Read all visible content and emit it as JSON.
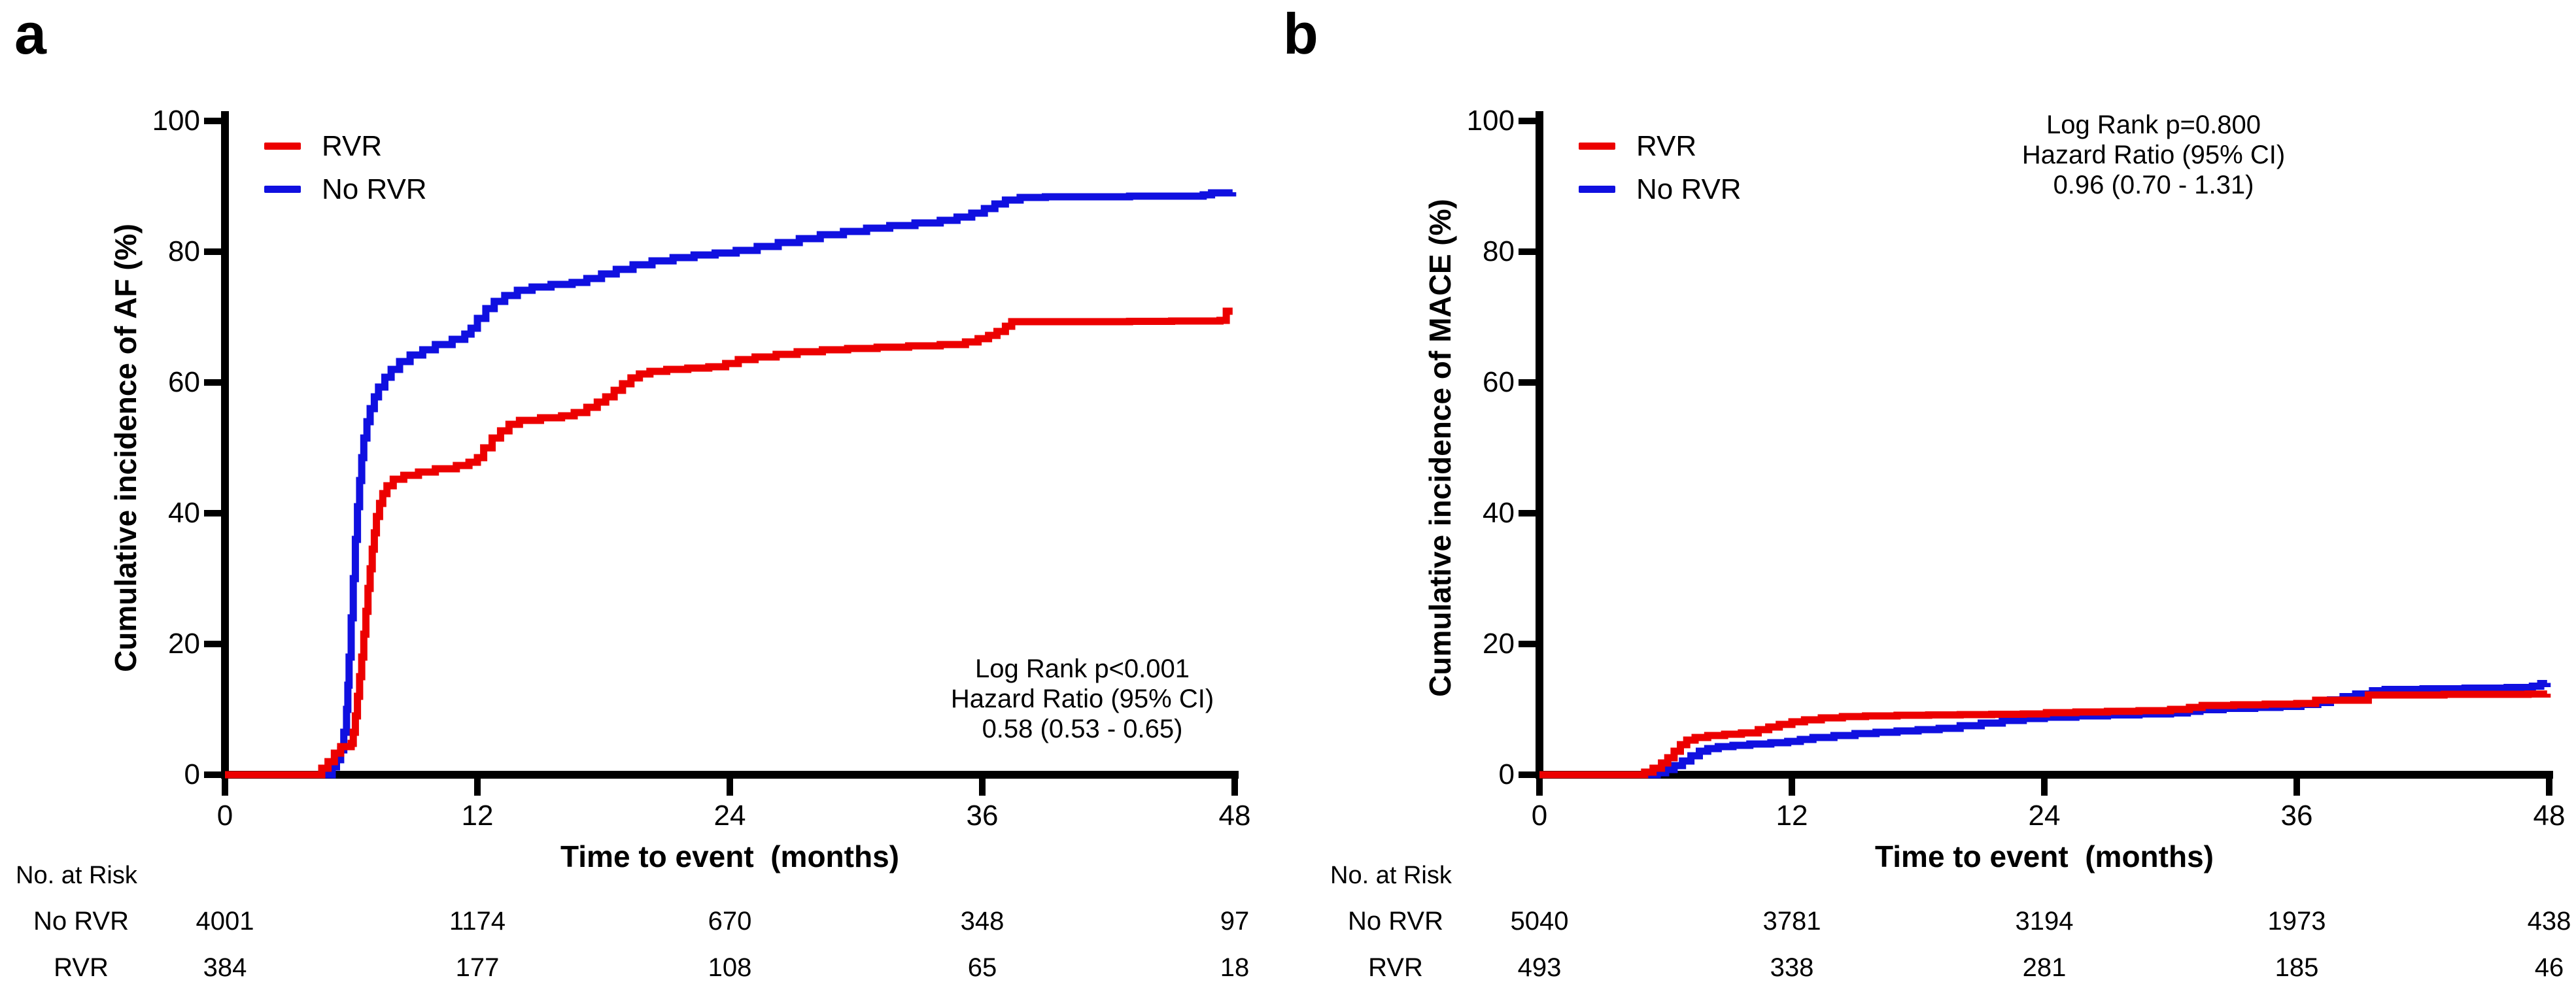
{
  "figure": {
    "background": "#ffffff",
    "text_color": "#000000"
  },
  "colors": {
    "rvr": "#ec0000",
    "no_rvr": "#1010e0",
    "axis": "#000000"
  },
  "panels": [
    {
      "letter": "a",
      "y_axis_label": "Cumulative incidence of AF (%)",
      "x_axis_label": "Time to event  (months)",
      "y_ticks": [
        "0",
        "20",
        "40",
        "60",
        "80",
        "100"
      ],
      "x_ticks": [
        "0",
        "12",
        "24",
        "36",
        "48"
      ],
      "legend": [
        {
          "label": "RVR",
          "color": "#ec0000"
        },
        {
          "label": "No RVR",
          "color": "#1010e0"
        }
      ],
      "annotation": [
        "Log Rank p<0.001",
        "Hazard Ratio (95% CI)",
        "0.58 (0.53 - 0.65)"
      ],
      "risk_table": {
        "title": "No. at Risk",
        "rows": [
          {
            "label": "No RVR",
            "values": [
              "4001",
              "1174",
              "670",
              "348",
              "97"
            ]
          },
          {
            "label": "RVR",
            "values": [
              "384",
              "177",
              "108",
              "65",
              "18"
            ]
          }
        ]
      }
    },
    {
      "letter": "b",
      "y_axis_label": "Cumulative incidence of MACE (%)",
      "x_axis_label": "Time to event  (months)",
      "y_ticks": [
        "0",
        "20",
        "40",
        "60",
        "80",
        "100"
      ],
      "x_ticks": [
        "0",
        "12",
        "24",
        "36",
        "48"
      ],
      "legend": [
        {
          "label": "RVR",
          "color": "#ec0000"
        },
        {
          "label": "No RVR",
          "color": "#1010e0"
        }
      ],
      "annotation": [
        "Log Rank p=0.800",
        "Hazard Ratio (95% CI)",
        "0.96 (0.70 - 1.31)"
      ],
      "risk_table": {
        "title": "No. at Risk",
        "rows": [
          {
            "label": "No RVR",
            "values": [
              "5040",
              "3781",
              "3194",
              "1973",
              "438"
            ]
          },
          {
            "label": "RVR",
            "values": [
              "493",
              "338",
              "281",
              "185",
              "46"
            ]
          }
        ]
      }
    }
  ],
  "chart_data": [
    {
      "type": "line",
      "subtype": "step-after",
      "title": "Cumulative incidence of AF",
      "xlabel": "Time to event (months)",
      "ylabel": "Cumulative incidence of AF (%)",
      "xlim": [
        0,
        48
      ],
      "ylim": [
        0,
        100
      ],
      "grid": false,
      "legend_position": "top-left",
      "annotation_position": "bottom-right",
      "series": [
        {
          "name": "No RVR",
          "color": "#1010e0",
          "points": [
            [
              0,
              0
            ],
            [
              4.8,
              0
            ],
            [
              5.1,
              1.2
            ],
            [
              5.3,
              2.3
            ],
            [
              5.5,
              3.8
            ],
            [
              5.65,
              6.5
            ],
            [
              5.78,
              10
            ],
            [
              5.84,
              13.7
            ],
            [
              5.9,
              18
            ],
            [
              6.0,
              24
            ],
            [
              6.1,
              30
            ],
            [
              6.2,
              36
            ],
            [
              6.3,
              41
            ],
            [
              6.4,
              45
            ],
            [
              6.5,
              48.5
            ],
            [
              6.6,
              51.5
            ],
            [
              6.75,
              54
            ],
            [
              6.9,
              56
            ],
            [
              7.1,
              57.8
            ],
            [
              7.3,
              59.3
            ],
            [
              7.6,
              60.8
            ],
            [
              7.9,
              62
            ],
            [
              8.3,
              63.2
            ],
            [
              8.8,
              64.2
            ],
            [
              9.4,
              65
            ],
            [
              10,
              65.8
            ],
            [
              10.8,
              66.6
            ],
            [
              11.4,
              67.4
            ],
            [
              11.7,
              68.3
            ],
            [
              12,
              69.8
            ],
            [
              12.4,
              71.3
            ],
            [
              12.8,
              72.4
            ],
            [
              13.3,
              73.3
            ],
            [
              13.9,
              74.1
            ],
            [
              14.6,
              74.6
            ],
            [
              15.5,
              75
            ],
            [
              16.5,
              75.3
            ],
            [
              17.2,
              75.9
            ],
            [
              17.9,
              76.6
            ],
            [
              18.6,
              77.3
            ],
            [
              19.4,
              78
            ],
            [
              20.3,
              78.6
            ],
            [
              21.3,
              79.1
            ],
            [
              22.3,
              79.5
            ],
            [
              23.3,
              79.8
            ],
            [
              24.3,
              80.2
            ],
            [
              25.3,
              80.8
            ],
            [
              26.3,
              81.4
            ],
            [
              27.3,
              82
            ],
            [
              28.3,
              82.6
            ],
            [
              29.4,
              83.1
            ],
            [
              30.5,
              83.6
            ],
            [
              31.6,
              84
            ],
            [
              32.8,
              84.4
            ],
            [
              34,
              84.8
            ],
            [
              34.8,
              85.3
            ],
            [
              35.5,
              85.9
            ],
            [
              36.1,
              86.6
            ],
            [
              36.6,
              87.3
            ],
            [
              37.1,
              87.9
            ],
            [
              37.8,
              88.3
            ],
            [
              39,
              88.4
            ],
            [
              41,
              88.4
            ],
            [
              43,
              88.5
            ],
            [
              45,
              88.5
            ],
            [
              46.5,
              88.7
            ],
            [
              46.9,
              89
            ],
            [
              47.9,
              89.1
            ]
          ]
        },
        {
          "name": "RVR",
          "color": "#ec0000",
          "points": [
            [
              0,
              0
            ],
            [
              4.3,
              0
            ],
            [
              4.6,
              1
            ],
            [
              4.9,
              2
            ],
            [
              5.2,
              3.3
            ],
            [
              5.5,
              4.3
            ],
            [
              6.0,
              4.8
            ],
            [
              6.1,
              6.5
            ],
            [
              6.2,
              9
            ],
            [
              6.3,
              12
            ],
            [
              6.4,
              15
            ],
            [
              6.5,
              18
            ],
            [
              6.6,
              21.5
            ],
            [
              6.7,
              25
            ],
            [
              6.8,
              28.5
            ],
            [
              6.9,
              31.5
            ],
            [
              7.0,
              34.5
            ],
            [
              7.1,
              37
            ],
            [
              7.2,
              39.5
            ],
            [
              7.35,
              41.5
            ],
            [
              7.5,
              43
            ],
            [
              7.7,
              44.2
            ],
            [
              8.0,
              45.2
            ],
            [
              8.5,
              45.8
            ],
            [
              9.2,
              46.3
            ],
            [
              10,
              46.8
            ],
            [
              11,
              47.3
            ],
            [
              11.6,
              47.8
            ],
            [
              12,
              48.5
            ],
            [
              12.3,
              50
            ],
            [
              12.7,
              51.5
            ],
            [
              13.1,
              52.6
            ],
            [
              13.5,
              53.6
            ],
            [
              14,
              54.2
            ],
            [
              15,
              54.6
            ],
            [
              16,
              54.9
            ],
            [
              16.6,
              55.4
            ],
            [
              17.2,
              56.2
            ],
            [
              17.7,
              57
            ],
            [
              18.1,
              57.8
            ],
            [
              18.5,
              58.8
            ],
            [
              18.9,
              59.8
            ],
            [
              19.3,
              60.7
            ],
            [
              19.7,
              61.3
            ],
            [
              20.2,
              61.7
            ],
            [
              21,
              62
            ],
            [
              22,
              62.2
            ],
            [
              23,
              62.4
            ],
            [
              23.8,
              62.9
            ],
            [
              24.4,
              63.5
            ],
            [
              25.2,
              63.9
            ],
            [
              26.2,
              64.3
            ],
            [
              27.2,
              64.7
            ],
            [
              28.4,
              65
            ],
            [
              29.6,
              65.2
            ],
            [
              31,
              65.4
            ],
            [
              32.5,
              65.6
            ],
            [
              34,
              65.8
            ],
            [
              35.2,
              66.2
            ],
            [
              35.8,
              66.7
            ],
            [
              36.3,
              67.2
            ],
            [
              36.7,
              67.8
            ],
            [
              37.1,
              68.6
            ],
            [
              37.4,
              69.3
            ],
            [
              39,
              69.3
            ],
            [
              41,
              69.3
            ],
            [
              43,
              69.35
            ],
            [
              45,
              69.4
            ],
            [
              47.3,
              69.5
            ],
            [
              47.6,
              70.9
            ],
            [
              47.9,
              70.9
            ]
          ]
        }
      ]
    },
    {
      "type": "line",
      "subtype": "step-after",
      "title": "Cumulative incidence of MACE",
      "xlabel": "Time to event (months)",
      "ylabel": "Cumulative incidence of MACE (%)",
      "xlim": [
        0,
        48
      ],
      "ylim": [
        0,
        100
      ],
      "grid": false,
      "legend_position": "top-left",
      "annotation_position": "top-right",
      "series": [
        {
          "name": "No RVR",
          "color": "#1010e0",
          "points": [
            [
              0,
              0
            ],
            [
              5.2,
              0
            ],
            [
              5.6,
              0.3
            ],
            [
              6.0,
              0.8
            ],
            [
              6.4,
              1.4
            ],
            [
              6.8,
              2.1
            ],
            [
              7.2,
              2.9
            ],
            [
              7.6,
              3.6
            ],
            [
              8.0,
              4.0
            ],
            [
              8.5,
              4.3
            ],
            [
              9.2,
              4.5
            ],
            [
              10,
              4.7
            ],
            [
              11,
              4.9
            ],
            [
              11.8,
              5.1
            ],
            [
              12.4,
              5.4
            ],
            [
              13,
              5.7
            ],
            [
              14,
              6.0
            ],
            [
              15,
              6.3
            ],
            [
              16,
              6.5
            ],
            [
              17,
              6.7
            ],
            [
              18,
              6.9
            ],
            [
              19,
              7.1
            ],
            [
              20,
              7.5
            ],
            [
              21,
              7.9
            ],
            [
              22,
              8.3
            ],
            [
              23,
              8.6
            ],
            [
              24,
              8.8
            ],
            [
              25.5,
              9.0
            ],
            [
              27,
              9.15
            ],
            [
              28.5,
              9.3
            ],
            [
              30,
              9.45
            ],
            [
              30.8,
              9.7
            ],
            [
              31.4,
              9.95
            ],
            [
              32.5,
              10.15
            ],
            [
              34,
              10.3
            ],
            [
              35.2,
              10.45
            ],
            [
              36.2,
              10.75
            ],
            [
              37,
              11.05
            ],
            [
              37.6,
              11.45
            ],
            [
              38.2,
              11.95
            ],
            [
              38.8,
              12.35
            ],
            [
              39.6,
              12.85
            ],
            [
              40.2,
              13.05
            ],
            [
              42,
              13.15
            ],
            [
              44,
              13.25
            ],
            [
              46,
              13.35
            ],
            [
              47.2,
              13.55
            ],
            [
              47.6,
              13.95
            ],
            [
              47.9,
              14.05
            ]
          ]
        },
        {
          "name": "RVR",
          "color": "#ec0000",
          "points": [
            [
              0,
              0
            ],
            [
              4.6,
              0
            ],
            [
              5.0,
              0.4
            ],
            [
              5.4,
              1
            ],
            [
              5.8,
              1.8
            ],
            [
              6.1,
              2.6
            ],
            [
              6.4,
              3.6
            ],
            [
              6.7,
              4.6
            ],
            [
              7.0,
              5.3
            ],
            [
              7.4,
              5.7
            ],
            [
              8.0,
              6.0
            ],
            [
              8.8,
              6.2
            ],
            [
              9.6,
              6.4
            ],
            [
              10.4,
              6.9
            ],
            [
              10.9,
              7.3
            ],
            [
              11.4,
              7.7
            ],
            [
              12,
              8.1
            ],
            [
              12.6,
              8.4
            ],
            [
              13.4,
              8.7
            ],
            [
              14.4,
              8.9
            ],
            [
              15.5,
              9.0
            ],
            [
              17,
              9.1
            ],
            [
              18.5,
              9.15
            ],
            [
              20,
              9.2
            ],
            [
              21.5,
              9.25
            ],
            [
              23,
              9.3
            ],
            [
              24.1,
              9.5
            ],
            [
              25.5,
              9.6
            ],
            [
              27,
              9.7
            ],
            [
              28.5,
              9.8
            ],
            [
              30,
              10.0
            ],
            [
              30.9,
              10.3
            ],
            [
              31.5,
              10.6
            ],
            [
              33,
              10.7
            ],
            [
              34.5,
              10.8
            ],
            [
              36,
              10.9
            ],
            [
              36.9,
              11.4
            ],
            [
              38.2,
              11.4
            ],
            [
              39.4,
              12.2
            ],
            [
              41,
              12.2
            ],
            [
              43,
              12.3
            ],
            [
              45,
              12.3
            ],
            [
              47,
              12.35
            ],
            [
              47.9,
              12.4
            ]
          ]
        }
      ]
    }
  ]
}
